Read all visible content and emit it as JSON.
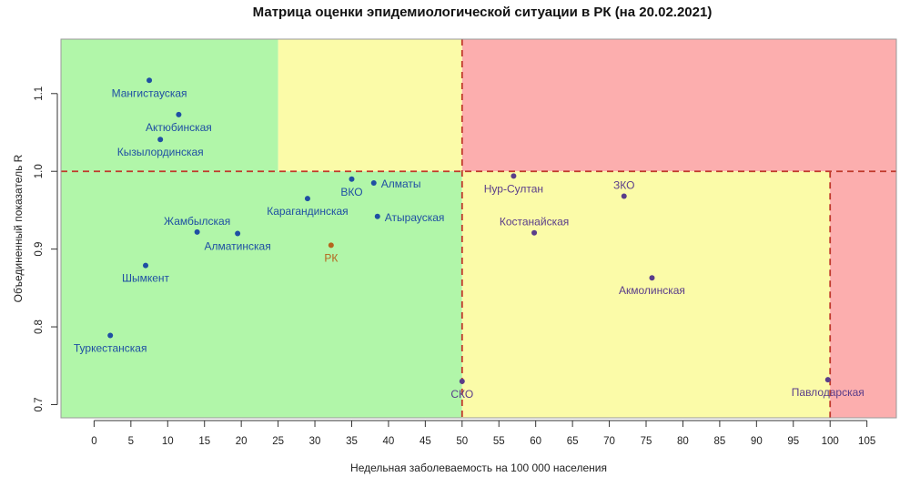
{
  "chart_data": {
    "type": "scatter",
    "title": "Матрица оценки эпидемиологической ситуации в РК (на 20.02.2021)",
    "xlabel": "Недельная заболеваемость на 100 000 населения",
    "ylabel": "Объединенный показатель R",
    "xlim": [
      -4.5,
      109
    ],
    "ylim": [
      0.683,
      1.17
    ],
    "x_ticks": [
      0,
      5,
      10,
      15,
      20,
      25,
      30,
      35,
      40,
      45,
      50,
      55,
      60,
      65,
      70,
      75,
      80,
      85,
      90,
      95,
      100,
      105
    ],
    "y_ticks": [
      0.7,
      0.8,
      0.9,
      1.0,
      1.1
    ],
    "zones": [
      {
        "x": [
          -4.5,
          25
        ],
        "y": [
          1.0,
          1.17
        ],
        "color": "#b1f6a9"
      },
      {
        "x": [
          25,
          50
        ],
        "y": [
          1.0,
          1.17
        ],
        "color": "#fbfba8"
      },
      {
        "x": [
          50,
          109
        ],
        "y": [
          1.0,
          1.17
        ],
        "color": "#fcaeae"
      },
      {
        "x": [
          -4.5,
          50
        ],
        "y": [
          0.683,
          1.0
        ],
        "color": "#b1f6a9"
      },
      {
        "x": [
          50,
          100
        ],
        "y": [
          0.683,
          1.0
        ],
        "color": "#fbfba8"
      },
      {
        "x": [
          100,
          109
        ],
        "y": [
          0.683,
          1.0
        ],
        "color": "#fcaeae"
      }
    ],
    "thresholds": {
      "x": [
        50,
        100
      ],
      "y": [
        1.0
      ],
      "color": "#c0392b"
    },
    "points": [
      {
        "label": "Мангистауская",
        "x": 7.5,
        "y": 1.117,
        "color": "#1f4fa3",
        "label_color": "#1f4fa3",
        "anchor": "middle",
        "dx": 0,
        "dy": 18
      },
      {
        "label": "Актюбинская",
        "x": 11.5,
        "y": 1.073,
        "color": "#1f4fa3",
        "label_color": "#1f4fa3",
        "anchor": "middle",
        "dx": 0,
        "dy": 18
      },
      {
        "label": "Кызылординская",
        "x": 9.0,
        "y": 1.041,
        "color": "#1f4fa3",
        "label_color": "#1f4fa3",
        "anchor": "middle",
        "dx": 0,
        "dy": 18
      },
      {
        "label": "Карагандинская",
        "x": 29.0,
        "y": 0.965,
        "color": "#1f4fa3",
        "label_color": "#1f4fa3",
        "anchor": "middle",
        "dx": 0,
        "dy": 18
      },
      {
        "label": "ВКО",
        "x": 35.0,
        "y": 0.99,
        "color": "#1f4fa3",
        "label_color": "#1f4fa3",
        "anchor": "middle",
        "dx": 0,
        "dy": 18
      },
      {
        "label": "Алматы",
        "x": 38.0,
        "y": 0.985,
        "color": "#1f4fa3",
        "label_color": "#1f4fa3",
        "anchor": "start",
        "dx": 8,
        "dy": 5
      },
      {
        "label": "Атырауская",
        "x": 38.5,
        "y": 0.942,
        "color": "#1f4fa3",
        "label_color": "#1f4fa3",
        "anchor": "start",
        "dx": 8,
        "dy": 5
      },
      {
        "label": "Жамбылская",
        "x": 14.0,
        "y": 0.922,
        "color": "#1f4fa3",
        "label_color": "#1f4fa3",
        "anchor": "middle",
        "dx": 0,
        "dy": -8
      },
      {
        "label": "Алматинская",
        "x": 19.5,
        "y": 0.92,
        "color": "#1f4fa3",
        "label_color": "#1f4fa3",
        "anchor": "middle",
        "dx": 0,
        "dy": 18
      },
      {
        "label": "РК",
        "x": 32.2,
        "y": 0.905,
        "color": "#b5651d",
        "label_color": "#b5651d",
        "anchor": "middle",
        "dx": 0,
        "dy": 18
      },
      {
        "label": "Шымкент",
        "x": 7.0,
        "y": 0.879,
        "color": "#1f4fa3",
        "label_color": "#1f4fa3",
        "anchor": "middle",
        "dx": 0,
        "dy": 18
      },
      {
        "label": "Туркестанская",
        "x": 2.2,
        "y": 0.789,
        "color": "#1f4fa3",
        "label_color": "#1f4fa3",
        "anchor": "middle",
        "dx": 0,
        "dy": 18
      },
      {
        "label": "Нур-Султан",
        "x": 57.0,
        "y": 0.994,
        "color": "#5a3d8a",
        "label_color": "#5a3d8a",
        "anchor": "middle",
        "dx": 0,
        "dy": 18
      },
      {
        "label": "ЗКО",
        "x": 72.0,
        "y": 0.968,
        "color": "#5a3d8a",
        "label_color": "#5a3d8a",
        "anchor": "middle",
        "dx": 0,
        "dy": -8
      },
      {
        "label": "Костанайская",
        "x": 59.8,
        "y": 0.921,
        "color": "#5a3d8a",
        "label_color": "#5a3d8a",
        "anchor": "middle",
        "dx": 0,
        "dy": -8
      },
      {
        "label": "Акмолинская",
        "x": 75.8,
        "y": 0.863,
        "color": "#5a3d8a",
        "label_color": "#5a3d8a",
        "anchor": "middle",
        "dx": 0,
        "dy": 18
      },
      {
        "label": "СКО",
        "x": 50.0,
        "y": 0.73,
        "color": "#5a3d8a",
        "label_color": "#5a3d8a",
        "anchor": "middle",
        "dx": 0,
        "dy": 18
      },
      {
        "label": "Павлодарская",
        "x": 99.7,
        "y": 0.732,
        "color": "#5a3d8a",
        "label_color": "#5a3d8a",
        "anchor": "middle",
        "dx": 0,
        "dy": 18
      }
    ]
  }
}
